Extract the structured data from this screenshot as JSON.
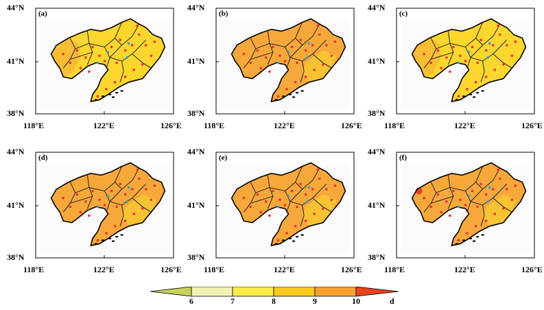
{
  "axis_ticks": {
    "lat": [
      "44°N",
      "41°N",
      "38°N"
    ],
    "lon": [
      "118°E",
      "122°E",
      "126°E"
    ]
  },
  "panels": [
    {
      "label": "(a)",
      "dominant_class": "8-9"
    },
    {
      "label": "(b)",
      "dominant_class": "9-10"
    },
    {
      "label": "(c)",
      "dominant_class": "8-9"
    },
    {
      "label": "(d)",
      "dominant_class": "9-10"
    },
    {
      "label": "(e)",
      "dominant_class": "9-10"
    },
    {
      "label": "(f)",
      "dominant_class": "9-10"
    }
  ],
  "colorbar": {
    "ticks": [
      "6",
      "7",
      "8",
      "9",
      "10"
    ],
    "unit": "d",
    "colors": [
      "#c8d25a",
      "#f0f0b4",
      "#fbeb46",
      "#fbc81e",
      "#f7a030",
      "#e8431e"
    ]
  },
  "colors": {
    "station_red": "#e8313a",
    "station_blue": "#2f9fc9",
    "sea_shade": "#fafafa",
    "class_8_9": "#fbd72e",
    "class_9_10": "#f6a83a"
  }
}
